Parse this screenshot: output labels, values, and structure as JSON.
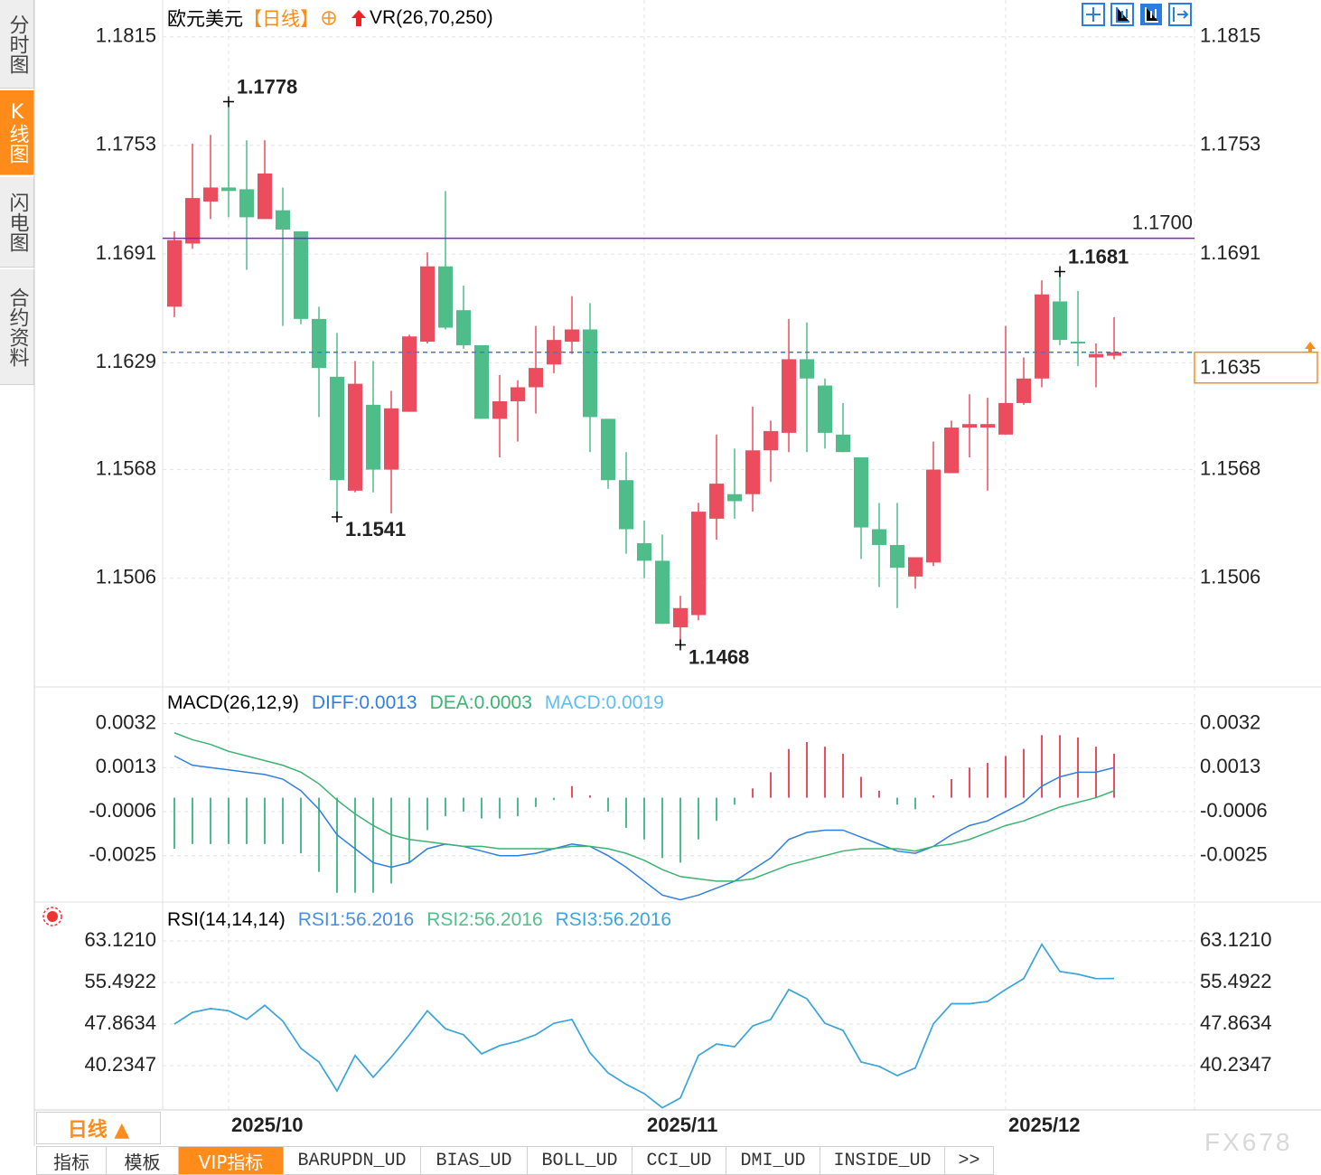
{
  "sidebar": {
    "tabs": [
      "分时图",
      "K线图",
      "闪电图",
      "合约资料"
    ]
  },
  "chart_data": [
    {
      "type": "candlestick",
      "title": "欧元美元",
      "period": "【日线】",
      "indicator": "VR(26,70,250)",
      "categories": [
        null,
        null,
        null,
        "2025/10",
        null,
        null,
        null,
        null,
        null,
        null,
        null,
        null,
        null,
        null,
        null,
        null,
        null,
        null,
        null,
        null,
        null,
        null,
        null,
        null,
        null,
        null,
        "2025/11",
        null,
        null,
        null,
        null,
        null,
        null,
        null,
        null,
        null,
        null,
        null,
        null,
        null,
        null,
        null,
        null,
        null,
        null,
        null,
        "2025/12",
        null,
        null,
        null,
        null,
        null,
        null
      ],
      "open": [
        1.1661,
        1.1697,
        1.1721,
        1.1729,
        1.1728,
        1.1711,
        1.1716,
        1.1704,
        1.1654,
        1.1621,
        1.1556,
        1.1605,
        1.1568,
        1.1601,
        1.1641,
        1.1684,
        1.1659,
        1.1639,
        1.1597,
        1.1607,
        1.1615,
        1.1628,
        1.1641,
        1.1648,
        1.1597,
        1.1562,
        1.1526,
        1.1516,
        1.1478,
        1.1485,
        1.154,
        1.1554,
        1.1554,
        1.1579,
        1.1589,
        1.1631,
        1.1616,
        1.1588,
        1.1575,
        1.1534,
        1.1525,
        1.1507,
        1.1515,
        1.1566,
        1.1592,
        1.1592,
        1.1588,
        1.1606,
        1.162,
        1.1664,
        1.1641,
        1.1632,
        1.1633
      ],
      "high": [
        1.1704,
        1.1754,
        1.1759,
        1.1778,
        1.1756,
        1.1756,
        1.1729,
        1.1704,
        1.1661,
        1.1646,
        1.163,
        1.163,
        1.1613,
        1.1645,
        1.1692,
        1.1727,
        1.1673,
        1.1639,
        1.1622,
        1.1619,
        1.165,
        1.165,
        1.1667,
        1.1663,
        1.1597,
        1.1578,
        1.1539,
        1.1531,
        1.1496,
        1.1549,
        1.1588,
        1.158,
        1.1604,
        1.1596,
        1.1654,
        1.1652,
        1.162,
        1.1606,
        1.1575,
        1.1549,
        1.1549,
        1.1518,
        1.1584,
        1.1596,
        1.1611,
        1.1609,
        1.165,
        1.1632,
        1.1676,
        1.1681,
        1.167,
        1.164,
        1.1655
      ],
      "low": [
        1.1655,
        1.1694,
        1.1711,
        1.1712,
        1.1682,
        1.1711,
        1.165,
        1.1651,
        1.1598,
        1.1541,
        1.1555,
        1.1555,
        1.1543,
        1.1601,
        1.164,
        1.1648,
        1.1637,
        1.1597,
        1.1575,
        1.1584,
        1.16,
        1.1623,
        1.1634,
        1.1578,
        1.1557,
        1.152,
        1.1506,
        1.148,
        1.1468,
        1.1482,
        1.1528,
        1.154,
        1.1544,
        1.1561,
        1.1578,
        1.1578,
        1.158,
        1.1578,
        1.1517,
        1.1501,
        1.1489,
        1.15,
        1.1513,
        1.1566,
        1.1575,
        1.1556,
        1.1588,
        1.1605,
        1.1615,
        1.1639,
        1.1627,
        1.1615,
        1.1631
      ],
      "close": [
        1.1699,
        1.1723,
        1.1729,
        1.1727,
        1.1712,
        1.1737,
        1.1705,
        1.1654,
        1.1626,
        1.1562,
        1.1617,
        1.1568,
        1.1603,
        1.1644,
        1.1684,
        1.1649,
        1.1639,
        1.1597,
        1.1607,
        1.1615,
        1.1626,
        1.1642,
        1.1648,
        1.1598,
        1.1562,
        1.1534,
        1.1516,
        1.148,
        1.1489,
        1.1544,
        1.156,
        1.155,
        1.1579,
        1.159,
        1.1631,
        1.162,
        1.1589,
        1.1578,
        1.1535,
        1.1525,
        1.1512,
        1.1518,
        1.1568,
        1.1592,
        1.1594,
        1.1594,
        1.1606,
        1.162,
        1.1668,
        1.1642,
        1.164,
        1.1634,
        1.1635
      ],
      "up_color": "#ec4d5e",
      "down_color": "#4fbd8a",
      "ylim": [
        1.1444,
        1.1836
      ],
      "yticks": [
        1.1815,
        1.1753,
        1.1691,
        1.1629,
        1.1568,
        1.1506
      ],
      "grid": true,
      "hlines": [
        {
          "value": 1.17,
          "label": "1.1700",
          "color": "#8a19e0"
        }
      ],
      "last_price_color": "#ff8c1a"
    },
    {
      "type": "macd",
      "title": "MACD(26,12,9)",
      "ylim": [
        -0.0045,
        0.0047
      ],
      "yticks": [
        0.0032,
        0.0013,
        -0.0006,
        -0.0025
      ],
      "grid": true,
      "series": [
        {
          "name": "DIFF:0.0013",
          "color": "#2f7fe0",
          "style": "line",
          "values": [
            0.0018,
            0.0014,
            0.0013,
            0.0012,
            0.0011,
            0.001,
            0.0008,
            0.0003,
            -0.0005,
            -0.0016,
            -0.0022,
            -0.0028,
            -0.003,
            -0.0028,
            -0.0022,
            -0.002,
            -0.0021,
            -0.0023,
            -0.0025,
            -0.0025,
            -0.0024,
            -0.0022,
            -0.002,
            -0.0021,
            -0.0025,
            -0.003,
            -0.0036,
            -0.0042,
            -0.0044,
            -0.0042,
            -0.0039,
            -0.0036,
            -0.0031,
            -0.0026,
            -0.0018,
            -0.0015,
            -0.0014,
            -0.0014,
            -0.0017,
            -0.002,
            -0.0023,
            -0.0024,
            -0.0021,
            -0.0016,
            -0.0012,
            -0.001,
            -0.0006,
            -0.0002,
            0.0005,
            0.0009,
            0.0011,
            0.0011,
            0.0013
          ]
        },
        {
          "name": "DEA:0.0003",
          "color": "#3cb371",
          "style": "line",
          "values": [
            0.0028,
            0.0025,
            0.0023,
            0.002,
            0.0018,
            0.0016,
            0.0014,
            0.0011,
            0.0006,
            -0.0001,
            -0.0007,
            -0.0012,
            -0.0016,
            -0.0018,
            -0.0019,
            -0.002,
            -0.0021,
            -0.0021,
            -0.0022,
            -0.0022,
            -0.0022,
            -0.0022,
            -0.0021,
            -0.0021,
            -0.0022,
            -0.0024,
            -0.0027,
            -0.0031,
            -0.0034,
            -0.0035,
            -0.0036,
            -0.0036,
            -0.0035,
            -0.0032,
            -0.0029,
            -0.0027,
            -0.0025,
            -0.0023,
            -0.0022,
            -0.0022,
            -0.0022,
            -0.0023,
            -0.0021,
            -0.002,
            -0.0018,
            -0.0015,
            -0.0012,
            -0.001,
            -0.0007,
            -0.0004,
            -0.0002,
            0,
            0.0003
          ]
        },
        {
          "name": "MACD:0.0019",
          "color": "#5bc0f0",
          "style": "histogram",
          "up_color": "#ec4d5e",
          "down_color": "#4fbd8a",
          "values": [
            -0.0022,
            -0.002,
            -0.002,
            -0.002,
            -0.002,
            -0.002,
            -0.002,
            -0.0024,
            -0.0032,
            -0.0041,
            -0.0041,
            -0.0041,
            -0.0037,
            -0.0028,
            -0.0014,
            -0.0008,
            -0.0006,
            -0.0009,
            -0.0009,
            -0.0008,
            -0.0004,
            -0.0001,
            0.0005,
            0.0001,
            -0.0006,
            -0.0013,
            -0.0018,
            -0.0026,
            -0.0028,
            -0.0018,
            -0.001,
            -0.0003,
            0.0004,
            0.0011,
            0.0021,
            0.0024,
            0.0022,
            0.0019,
            0.0009,
            0.0003,
            -0.0003,
            -0.0005,
            0.0001,
            0.0008,
            0.0013,
            0.0015,
            0.0018,
            0.0021,
            0.0027,
            0.0027,
            0.0026,
            0.0022,
            0.0019
          ]
        }
      ]
    },
    {
      "type": "line",
      "title": "RSI(14,14,14)",
      "ylim": [
        32.11,
        69.91
      ],
      "yticks": [
        {
          "value": 63.121,
          "label": "63.1210"
        },
        55.4922,
        47.8634,
        40.2347
      ],
      "grid": true,
      "series": [
        {
          "name": "RSI1:56.2016",
          "color": "#4a90e2",
          "values": [
            47.86,
            50,
            50.7,
            50.3,
            48.7,
            51.3,
            48.4,
            43.4,
            40.9,
            35.6,
            42.1,
            38.1,
            41.8,
            45.9,
            50.3,
            47,
            45.9,
            42.4,
            43.9,
            44.7,
            45.9,
            48,
            48.7,
            42.6,
            38.9,
            36.8,
            35.1,
            32.5,
            34.3,
            42.1,
            44.2,
            43.7,
            47.5,
            48.7,
            54.2,
            52.5,
            48,
            46.7,
            40.9,
            40.1,
            38.4,
            39.8,
            47.9,
            51.6,
            51.6,
            52,
            54.2,
            56.2,
            62.5,
            57.5,
            57,
            56.2,
            56.2016
          ]
        },
        {
          "name": "RSI2:56.2016",
          "color": "#52c08a",
          "values": [
            47.86,
            50,
            50.7,
            50.3,
            48.7,
            51.3,
            48.4,
            43.4,
            40.9,
            35.6,
            42.1,
            38.1,
            41.8,
            45.9,
            50.3,
            47,
            45.9,
            42.4,
            43.9,
            44.7,
            45.9,
            48,
            48.7,
            42.6,
            38.9,
            36.8,
            35.1,
            32.5,
            34.3,
            42.1,
            44.2,
            43.7,
            47.5,
            48.7,
            54.2,
            52.5,
            48,
            46.7,
            40.9,
            40.1,
            38.4,
            39.8,
            47.9,
            51.6,
            51.6,
            52,
            54.2,
            56.2,
            62.5,
            57.5,
            57,
            56.2,
            56.2016
          ]
        },
        {
          "name": "RSI3:56.2016",
          "color": "#3aa5e0",
          "values": [
            47.86,
            50,
            50.7,
            50.3,
            48.7,
            51.3,
            48.4,
            43.4,
            40.9,
            35.6,
            42.1,
            38.1,
            41.8,
            45.9,
            50.3,
            47,
            45.9,
            42.4,
            43.9,
            44.7,
            45.9,
            48,
            48.7,
            42.6,
            38.9,
            36.8,
            35.1,
            32.5,
            34.3,
            42.1,
            44.2,
            43.7,
            47.5,
            48.7,
            54.2,
            52.5,
            48,
            46.7,
            40.9,
            40.1,
            38.4,
            39.8,
            47.9,
            51.6,
            51.6,
            52,
            54.2,
            56.2,
            62.5,
            57.5,
            57,
            56.2,
            56.2016
          ]
        }
      ]
    }
  ],
  "period_button": "日线 ▲",
  "tabs": [
    "指标",
    "模板",
    "VIP指标",
    "BARUPDN_UD",
    "BIAS_UD",
    "BOLL_UD",
    "CCI_UD",
    "DMI_UD",
    "INSIDE_UD",
    ">>"
  ],
  "watermark": "FX678"
}
